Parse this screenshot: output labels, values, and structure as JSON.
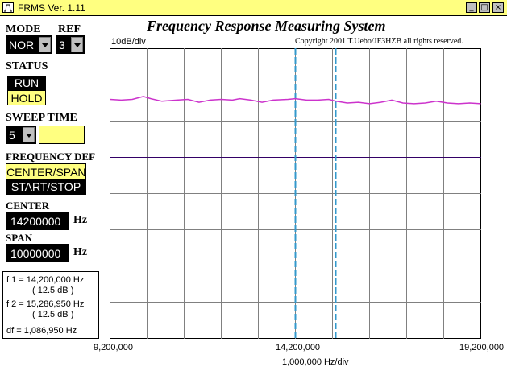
{
  "window": {
    "title": "FRMS  Ver. 1.11",
    "minimize_glyph": "_",
    "maximize_glyph": "□",
    "close_glyph": "×"
  },
  "header": {
    "title": "Frequency Response Measuring System",
    "scale_label": "10dB/div",
    "copyright": "Copyright 2001 T.Uebo/JF3HZB all rights reserved."
  },
  "controls": {
    "mode_label": "MODE",
    "mode_value": "NOR",
    "ref_label": "REF",
    "ref_value": "3",
    "status_label": "STATUS",
    "run_label": "RUN",
    "hold_label": "HOLD",
    "sweep_label": "SWEEP TIME",
    "sweep_value": "5",
    "sweep_extra": "",
    "freqdef_label": "FREQUENCY DEF",
    "center_span_label": "CENTER/SPAN",
    "start_stop_label": "START/STOP",
    "center_label": "CENTER",
    "center_value": "14200000",
    "center_unit": "Hz",
    "span_label": "SPAN",
    "span_value": "10000000",
    "span_unit": "Hz"
  },
  "markers": {
    "f1": "f 1 = 14,200,000 Hz",
    "f1_db": "( 12.5 dB )",
    "f2": "f 2 = 15,286,950 Hz",
    "f2_db": "( 12.5 dB )",
    "df": "df = 1,086,950 Hz"
  },
  "x_axis": {
    "left": "9,200,000",
    "center": "14,200,000",
    "right": "19,200,000",
    "div_label": "1,000,000 Hz/div"
  },
  "colors": {
    "trace": "#cc33cc",
    "baseline": "#330066",
    "marker": "#3399cc",
    "highlight": "#ffff80"
  },
  "chart_data": {
    "type": "line",
    "title": "",
    "xlabel": "1,000,000 Hz/div",
    "ylabel": "10dB/div",
    "xlim": [
      9200000,
      19200000
    ],
    "ylim": [
      -8,
      0
    ],
    "grid": true,
    "markers_x": [
      14200000,
      15286950
    ],
    "baseline_y": -3,
    "series": [
      {
        "x": [
          9200000,
          9500000,
          9800000,
          10100000,
          10300000,
          10600000,
          11000000,
          11300000,
          11600000,
          11900000,
          12200000,
          12500000,
          12700000,
          13000000,
          13300000,
          13600000,
          14000000,
          14200000,
          14500000,
          14800000,
          15100000,
          15300000,
          15600000,
          15900000,
          16200000,
          16500000,
          16800000,
          17100000,
          17400000,
          17700000,
          18000000,
          18300000,
          18600000,
          18900000,
          19200000
        ],
        "y": [
          -1.4,
          -1.42,
          -1.4,
          -1.32,
          -1.38,
          -1.45,
          -1.42,
          -1.4,
          -1.48,
          -1.42,
          -1.4,
          -1.42,
          -1.38,
          -1.42,
          -1.48,
          -1.42,
          -1.4,
          -1.38,
          -1.42,
          -1.42,
          -1.4,
          -1.45,
          -1.5,
          -1.48,
          -1.52,
          -1.48,
          -1.42,
          -1.5,
          -1.52,
          -1.5,
          -1.45,
          -1.5,
          -1.52,
          -1.5,
          -1.52
        ]
      }
    ]
  }
}
